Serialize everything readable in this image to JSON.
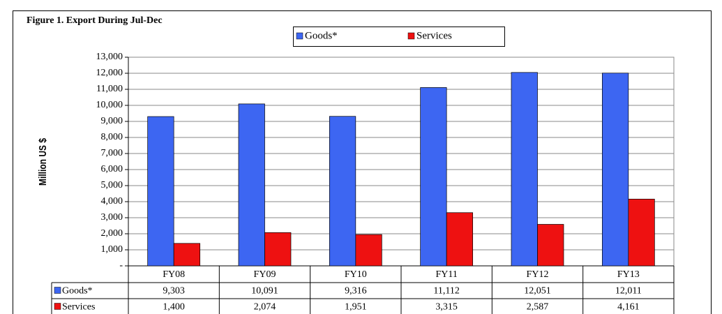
{
  "chart_data": {
    "type": "bar",
    "title": "Figure 1. Export During Jul-Dec",
    "y_label": "Million US $",
    "categories": [
      "FY08",
      "FY09",
      "FY10",
      "FY11",
      "FY12",
      "FY13"
    ],
    "series": [
      {
        "name": "Goods*",
        "color": "#3d66f2",
        "values": [
          9303,
          10091,
          9316,
          11112,
          12051,
          12011
        ],
        "value_labels": [
          "9,303",
          "10,091",
          "9,316",
          "11,112",
          "12,051",
          "12,011"
        ]
      },
      {
        "name": "Services",
        "color": "#ee1111",
        "values": [
          1400,
          2074,
          1951,
          3315,
          2587,
          4161
        ],
        "value_labels": [
          "1,400",
          "2,074",
          "1,951",
          "3,315",
          "2,587",
          "4,161"
        ]
      }
    ],
    "ylim": [
      0,
      13000
    ],
    "yticks": [
      {
        "value": 0,
        "label": "-"
      },
      {
        "value": 1000,
        "label": "1,000"
      },
      {
        "value": 2000,
        "label": "2,000"
      },
      {
        "value": 3000,
        "label": "3,000"
      },
      {
        "value": 4000,
        "label": "4,000"
      },
      {
        "value": 5000,
        "label": "5,000"
      },
      {
        "value": 6000,
        "label": "6,000"
      },
      {
        "value": 7000,
        "label": "7,000"
      },
      {
        "value": 8000,
        "label": "8,000"
      },
      {
        "value": 9000,
        "label": "9,000"
      },
      {
        "value": 10000,
        "label": "10,000"
      },
      {
        "value": 11000,
        "label": "11,000"
      },
      {
        "value": 12000,
        "label": "12,000"
      },
      {
        "value": 13000,
        "label": "13,000"
      }
    ],
    "grid": true,
    "legend": "top"
  }
}
